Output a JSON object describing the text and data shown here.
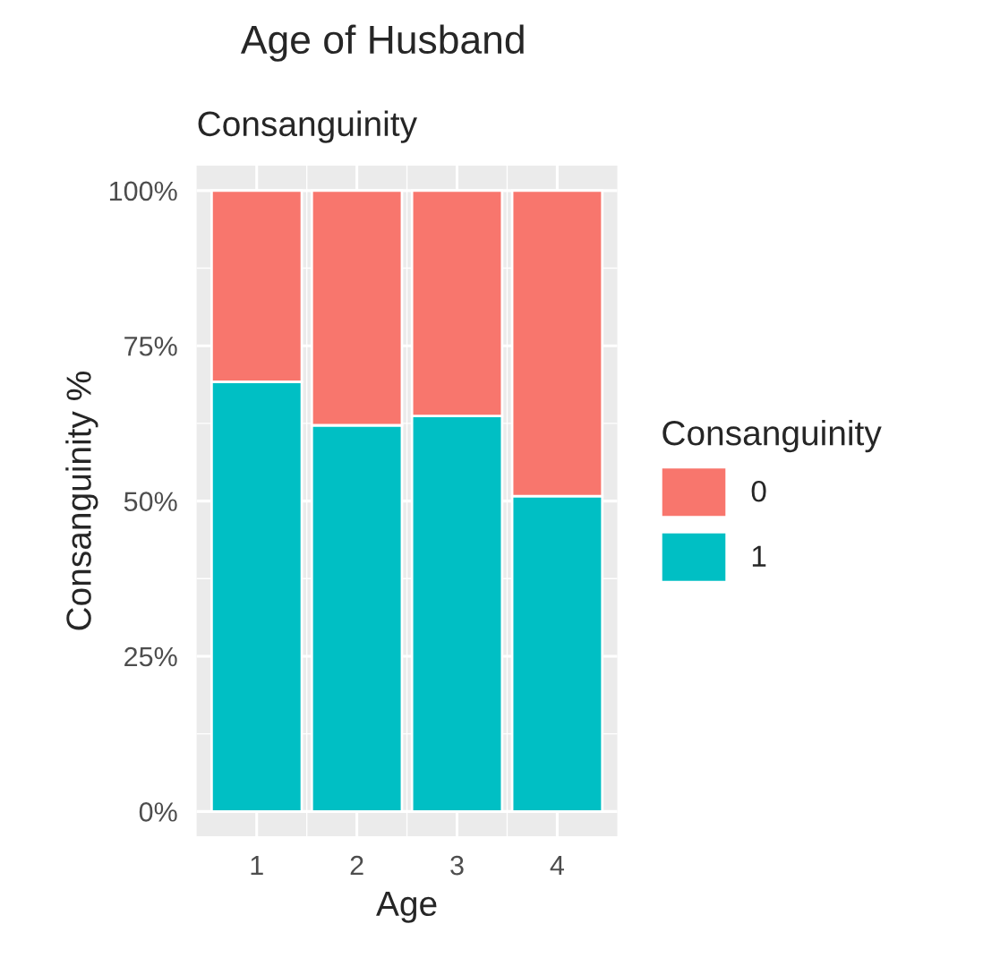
{
  "chart_data": {
    "type": "bar",
    "title": "Age of Husband",
    "subtitle": "Consanguinity",
    "xlabel": "Age",
    "ylabel": "Consanguinity %",
    "legend_title": "Consanguinity",
    "categories": [
      "1",
      "2",
      "3",
      "4"
    ],
    "stacked": true,
    "series": [
      {
        "name": "1",
        "color": "#00bfc4",
        "values": [
          69.2,
          62.2,
          63.7,
          50.8
        ]
      },
      {
        "name": "0",
        "color": "#f8766d",
        "values": [
          30.8,
          37.8,
          36.3,
          49.2
        ]
      }
    ],
    "ylim": [
      -4,
      104
    ],
    "yticks": [
      {
        "value": 0,
        "label": "0%"
      },
      {
        "value": 25,
        "label": "25%"
      },
      {
        "value": 50,
        "label": "50%"
      },
      {
        "value": 75,
        "label": "75%"
      },
      {
        "value": 100,
        "label": "100%"
      }
    ],
    "grid": true,
    "legend": "right"
  }
}
